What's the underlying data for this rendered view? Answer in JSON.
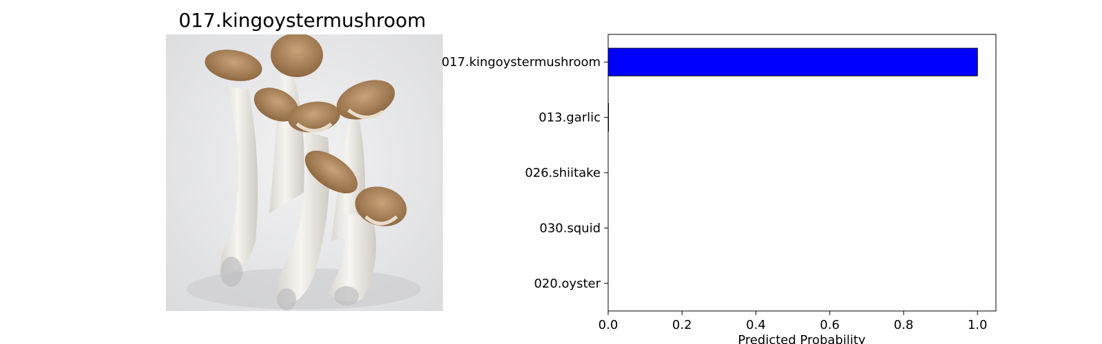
{
  "image_panel": {
    "title": "017.kingoystermushroom",
    "subject_icon": "king-oyster-mushroom-photo"
  },
  "colors": {
    "bar": "#0000ff",
    "bar_edge": "#000000",
    "background": "#ffffff"
  },
  "chart_data": {
    "type": "bar",
    "orientation": "horizontal",
    "categories": [
      "017.kingoystermushroom",
      "013.garlic",
      "026.shiitake",
      "030.squid",
      "020.oyster"
    ],
    "values": [
      1.0,
      0.001,
      0.0,
      0.0,
      0.0
    ],
    "xlabel": "Predicted Probability",
    "ylabel": "",
    "xlim": [
      0,
      1.05
    ],
    "xticks": [
      0.0,
      0.2,
      0.4,
      0.6,
      0.8,
      1.0
    ],
    "xtick_labels": [
      "0.0",
      "0.2",
      "0.4",
      "0.6",
      "0.8",
      "1.0"
    ],
    "grid": false,
    "legend": "none"
  }
}
